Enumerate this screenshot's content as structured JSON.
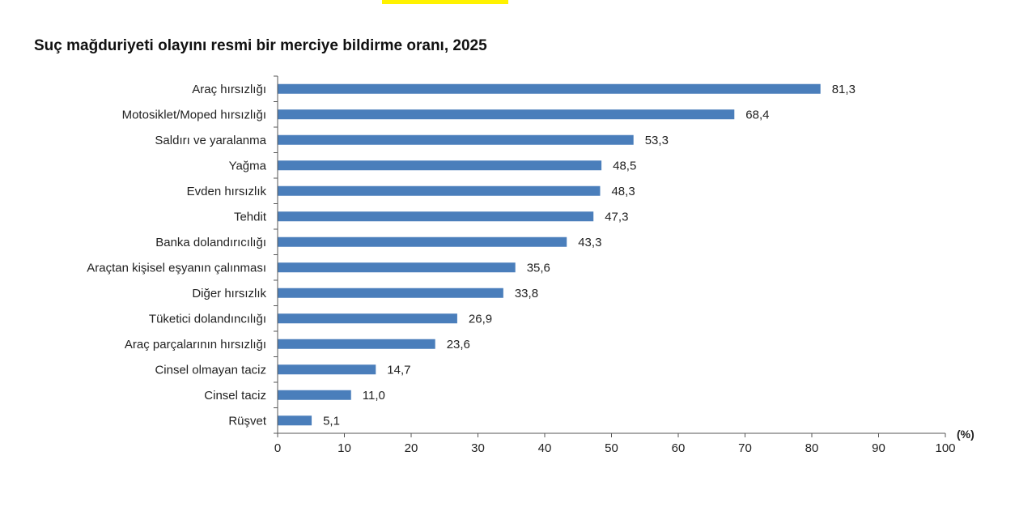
{
  "chart_data": {
    "type": "bar",
    "orientation": "horizontal",
    "title": "Suç mağduriyeti olayını resmi bir merciye bildirme oranı, 2025",
    "xlabel": "",
    "unit_label": "(%)",
    "xlim": [
      0,
      100
    ],
    "x_ticks": [
      "0",
      "10",
      "20",
      "30",
      "40",
      "50",
      "60",
      "70",
      "80",
      "90",
      "100"
    ],
    "grid": false,
    "bar_color": "#4a7ebb",
    "categories": [
      "Araç hırsızlığı",
      "Motosiklet/Moped hırsızlığı",
      "Saldırı ve yaralanma",
      "Yağma",
      "Evden hırsızlık",
      "Tehdit",
      "Banka dolandırıcılığı",
      "Araçtan kişisel eşyanın çalınması",
      "Diğer hırsızlık",
      "Tüketici dolandıncılığı",
      "Araç parçalarının hırsızlığı",
      "Cinsel olmayan taciz",
      "Cinsel taciz",
      "Rüşvet"
    ],
    "values": [
      81.3,
      68.4,
      53.3,
      48.5,
      48.3,
      47.3,
      43.3,
      35.6,
      33.8,
      26.9,
      23.6,
      14.7,
      11.0,
      5.1
    ],
    "value_labels": [
      "81,3",
      "68,4",
      "53,3",
      "48,5",
      "48,3",
      "47,3",
      "43,3",
      "35,6",
      "33,8",
      "26,9",
      "23,6",
      "14,7",
      "11,0",
      "5,1"
    ]
  }
}
